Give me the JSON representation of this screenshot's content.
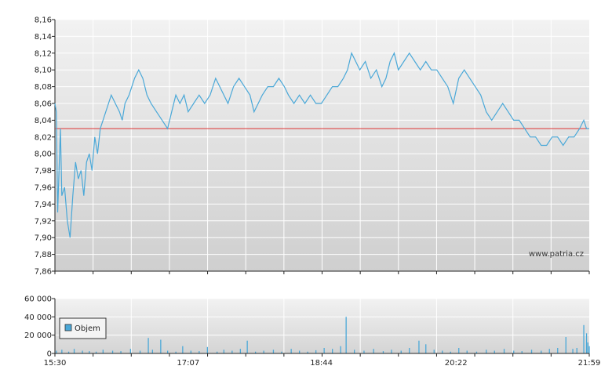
{
  "chart_data": [
    {
      "type": "line",
      "title": "",
      "xlabel": "",
      "ylabel": "",
      "ylim": [
        7.86,
        8.16
      ],
      "y_ticks": [
        "7,86",
        "7,88",
        "7,90",
        "7,92",
        "7,94",
        "7,96",
        "7,98",
        "8,00",
        "8,02",
        "8,04",
        "8,06",
        "8,08",
        "8,10",
        "8,12",
        "8,14",
        "8,16"
      ],
      "x_range": [
        "15:30",
        "21:59"
      ],
      "grid": true,
      "reference_line": {
        "value": 8.03,
        "color": "#dd3333"
      },
      "watermark": "www.patria.cz",
      "series": [
        {
          "color": "#4aa8d8",
          "points": [
            [
              "15:30",
              8.06
            ],
            [
              "15:31",
              8.05
            ],
            [
              "15:32",
              7.93
            ],
            [
              "15:34",
              8.03
            ],
            [
              "15:35",
              7.95
            ],
            [
              "15:37",
              7.96
            ],
            [
              "15:39",
              7.92
            ],
            [
              "15:41",
              7.9
            ],
            [
              "15:43",
              7.95
            ],
            [
              "15:45",
              7.99
            ],
            [
              "15:47",
              7.97
            ],
            [
              "15:49",
              7.98
            ],
            [
              "15:51",
              7.95
            ],
            [
              "15:53",
              7.99
            ],
            [
              "15:55",
              8.0
            ],
            [
              "15:57",
              7.98
            ],
            [
              "15:59",
              8.02
            ],
            [
              "16:01",
              8.0
            ],
            [
              "16:03",
              8.03
            ],
            [
              "16:05",
              8.04
            ],
            [
              "16:07",
              8.05
            ],
            [
              "16:09",
              8.06
            ],
            [
              "16:11",
              8.07
            ],
            [
              "16:14",
              8.06
            ],
            [
              "16:17",
              8.05
            ],
            [
              "16:19",
              8.04
            ],
            [
              "16:21",
              8.06
            ],
            [
              "16:24",
              8.07
            ],
            [
              "16:28",
              8.09
            ],
            [
              "16:31",
              8.1
            ],
            [
              "16:34",
              8.09
            ],
            [
              "16:37",
              8.07
            ],
            [
              "16:40",
              8.06
            ],
            [
              "16:44",
              8.05
            ],
            [
              "16:48",
              8.04
            ],
            [
              "16:52",
              8.03
            ],
            [
              "16:55",
              8.05
            ],
            [
              "16:58",
              8.07
            ],
            [
              "17:01",
              8.06
            ],
            [
              "17:04",
              8.07
            ],
            [
              "17:07",
              8.05
            ],
            [
              "17:11",
              8.06
            ],
            [
              "17:15",
              8.07
            ],
            [
              "17:19",
              8.06
            ],
            [
              "17:23",
              8.07
            ],
            [
              "17:27",
              8.09
            ],
            [
              "17:30",
              8.08
            ],
            [
              "17:33",
              8.07
            ],
            [
              "17:36",
              8.06
            ],
            [
              "17:40",
              8.08
            ],
            [
              "17:44",
              8.09
            ],
            [
              "17:48",
              8.08
            ],
            [
              "17:52",
              8.07
            ],
            [
              "17:55",
              8.05
            ],
            [
              "17:58",
              8.06
            ],
            [
              "18:01",
              8.07
            ],
            [
              "18:05",
              8.08
            ],
            [
              "18:09",
              8.08
            ],
            [
              "18:13",
              8.09
            ],
            [
              "18:17",
              8.08
            ],
            [
              "18:20",
              8.07
            ],
            [
              "18:24",
              8.06
            ],
            [
              "18:28",
              8.07
            ],
            [
              "18:32",
              8.06
            ],
            [
              "18:36",
              8.07
            ],
            [
              "18:40",
              8.06
            ],
            [
              "18:44",
              8.06
            ],
            [
              "18:48",
              8.07
            ],
            [
              "18:52",
              8.08
            ],
            [
              "18:56",
              8.08
            ],
            [
              "19:00",
              8.09
            ],
            [
              "19:03",
              8.1
            ],
            [
              "19:06",
              8.12
            ],
            [
              "19:09",
              8.11
            ],
            [
              "19:12",
              8.1
            ],
            [
              "19:16",
              8.11
            ],
            [
              "19:20",
              8.09
            ],
            [
              "19:24",
              8.1
            ],
            [
              "19:28",
              8.08
            ],
            [
              "19:31",
              8.09
            ],
            [
              "19:34",
              8.11
            ],
            [
              "19:37",
              8.12
            ],
            [
              "19:40",
              8.1
            ],
            [
              "19:44",
              8.11
            ],
            [
              "19:48",
              8.12
            ],
            [
              "19:52",
              8.11
            ],
            [
              "19:56",
              8.1
            ],
            [
              "20:00",
              8.11
            ],
            [
              "20:04",
              8.1
            ],
            [
              "20:08",
              8.1
            ],
            [
              "20:12",
              8.09
            ],
            [
              "20:16",
              8.08
            ],
            [
              "20:20",
              8.06
            ],
            [
              "20:24",
              8.09
            ],
            [
              "20:28",
              8.1
            ],
            [
              "20:32",
              8.09
            ],
            [
              "20:36",
              8.08
            ],
            [
              "20:40",
              8.07
            ],
            [
              "20:44",
              8.05
            ],
            [
              "20:48",
              8.04
            ],
            [
              "20:52",
              8.05
            ],
            [
              "20:56",
              8.06
            ],
            [
              "21:00",
              8.05
            ],
            [
              "21:04",
              8.04
            ],
            [
              "21:08",
              8.04
            ],
            [
              "21:12",
              8.03
            ],
            [
              "21:16",
              8.02
            ],
            [
              "21:20",
              8.02
            ],
            [
              "21:24",
              8.01
            ],
            [
              "21:28",
              8.01
            ],
            [
              "21:32",
              8.02
            ],
            [
              "21:36",
              8.02
            ],
            [
              "21:40",
              8.01
            ],
            [
              "21:44",
              8.02
            ],
            [
              "21:48",
              8.02
            ],
            [
              "21:52",
              8.03
            ],
            [
              "21:55",
              8.04
            ],
            [
              "21:57",
              8.03
            ],
            [
              "21:59",
              8.03
            ]
          ]
        }
      ]
    },
    {
      "type": "bar",
      "title": "",
      "xlabel": "",
      "ylabel": "",
      "ylim": [
        0,
        60000
      ],
      "y_ticks": [
        "0",
        "20 000",
        "40 000",
        "60 000"
      ],
      "x_ticks": [
        "15:30",
        "17:07",
        "18:44",
        "20:22",
        "21:59"
      ],
      "x_range": [
        "15:30",
        "21:59"
      ],
      "grid": true,
      "legend": {
        "label": "Objem",
        "placement": "top-left"
      },
      "series": [
        {
          "name": "Objem",
          "color": "#4aa8d8",
          "points": [
            [
              "15:31",
              3000
            ],
            [
              "15:35",
              4000
            ],
            [
              "15:40",
              2000
            ],
            [
              "15:44",
              5000
            ],
            [
              "15:50",
              3000
            ],
            [
              "15:55",
              2500
            ],
            [
              "16:00",
              2000
            ],
            [
              "16:05",
              4000
            ],
            [
              "16:12",
              3000
            ],
            [
              "16:18",
              2500
            ],
            [
              "16:25",
              5000
            ],
            [
              "16:32",
              3000
            ],
            [
              "16:38",
              17000
            ],
            [
              "16:41",
              4000
            ],
            [
              "16:47",
              15000
            ],
            [
              "16:52",
              3000
            ],
            [
              "16:58",
              2000
            ],
            [
              "17:03",
              8000
            ],
            [
              "17:09",
              3000
            ],
            [
              "17:15",
              2500
            ],
            [
              "17:21",
              7000
            ],
            [
              "17:28",
              2000
            ],
            [
              "17:33",
              4000
            ],
            [
              "17:39",
              3000
            ],
            [
              "17:45",
              5000
            ],
            [
              "17:50",
              14000
            ],
            [
              "17:56",
              2000
            ],
            [
              "18:02",
              3000
            ],
            [
              "18:09",
              4000
            ],
            [
              "18:15",
              2000
            ],
            [
              "18:22",
              5000
            ],
            [
              "18:28",
              3000
            ],
            [
              "18:34",
              2000
            ],
            [
              "18:40",
              3500
            ],
            [
              "18:46",
              6000
            ],
            [
              "18:52",
              5000
            ],
            [
              "18:58",
              8000
            ],
            [
              "19:02",
              40000
            ],
            [
              "19:08",
              4000
            ],
            [
              "19:15",
              3000
            ],
            [
              "19:22",
              5000
            ],
            [
              "19:29",
              2500
            ],
            [
              "19:35",
              4000
            ],
            [
              "19:42",
              3000
            ],
            [
              "19:48",
              6000
            ],
            [
              "19:55",
              14000
            ],
            [
              "20:00",
              10000
            ],
            [
              "20:06",
              4000
            ],
            [
              "20:12",
              3000
            ],
            [
              "20:18",
              2000
            ],
            [
              "20:24",
              6000
            ],
            [
              "20:30",
              3000
            ],
            [
              "20:37",
              2000
            ],
            [
              "20:44",
              4000
            ],
            [
              "20:50",
              3000
            ],
            [
              "20:57",
              5000
            ],
            [
              "21:04",
              3000
            ],
            [
              "21:10",
              2500
            ],
            [
              "21:17",
              4000
            ],
            [
              "21:24",
              3000
            ],
            [
              "21:30",
              5000
            ],
            [
              "21:36",
              6000
            ],
            [
              "21:42",
              18000
            ],
            [
              "21:47",
              5000
            ],
            [
              "21:50",
              6000
            ],
            [
              "21:55",
              31000
            ],
            [
              "21:57",
              22000
            ],
            [
              "21:58",
              12000
            ],
            [
              "21:59",
              8000
            ]
          ]
        }
      ]
    }
  ]
}
